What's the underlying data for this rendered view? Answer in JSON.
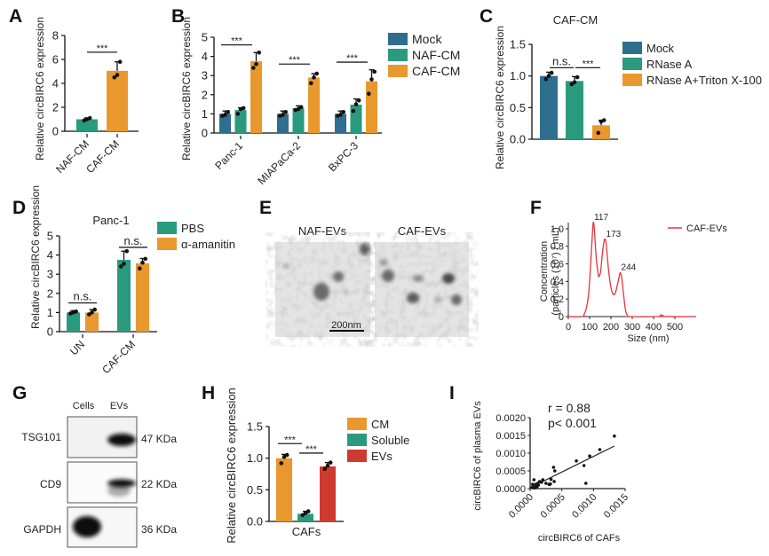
{
  "figure": {
    "panel_labels": [
      "A",
      "B",
      "C",
      "D",
      "E",
      "F",
      "G",
      "H",
      "I"
    ]
  },
  "colors": {
    "mock": "#2e6e8e",
    "teal": "#2a9a7e",
    "orange": "#e9982e",
    "red": "#cf3a2f",
    "line_red": "#e8323c"
  },
  "chart_data": [
    {
      "panel": "A",
      "type": "bar",
      "title": "",
      "ylabel": "Relative circBIRC6 expression",
      "xlabel": "",
      "ylim": [
        0,
        8
      ],
      "yticks": [
        0,
        2,
        4,
        6,
        8
      ],
      "categories": [
        "NAF-CM",
        "CAF-CM"
      ],
      "values": [
        1.0,
        5.05
      ],
      "errors": [
        0.12,
        0.75
      ],
      "points": [
        [
          0.9,
          1.0,
          1.1
        ],
        [
          4.5,
          4.7,
          5.8
        ]
      ],
      "bar_colors": [
        "teal",
        "orange"
      ],
      "significance": [
        {
          "from": 0,
          "to": 1,
          "label": "***",
          "y": 6.6
        }
      ]
    },
    {
      "panel": "B",
      "type": "bar",
      "ylabel": "Relative circBIRC6 expression",
      "ylim": [
        0,
        5
      ],
      "yticks": [
        0,
        1,
        2,
        3,
        4,
        5
      ],
      "categories": [
        "Panc-1",
        "MIAPaCa-2",
        "BxPC-3"
      ],
      "series": [
        {
          "name": "Mock",
          "color": "mock",
          "values": [
            1.0,
            1.0,
            1.0
          ],
          "errors": [
            0.15,
            0.15,
            0.15
          ],
          "points": [
            [
              0.9,
              0.95,
              1.1
            ],
            [
              0.9,
              0.95,
              1.1
            ],
            [
              0.9,
              0.95,
              1.1
            ]
          ]
        },
        {
          "name": "NAF-CM",
          "color": "teal",
          "values": [
            1.2,
            1.3,
            1.48
          ],
          "errors": [
            0.12,
            0.12,
            0.3
          ],
          "points": [
            [
              1.0,
              1.25,
              1.3
            ],
            [
              1.2,
              1.25,
              1.35
            ],
            [
              1.15,
              1.5,
              1.7
            ]
          ]
        },
        {
          "name": "CAF-CM",
          "color": "orange",
          "values": [
            3.75,
            2.9,
            2.7
          ],
          "errors": [
            0.45,
            0.2,
            0.6
          ],
          "points": [
            [
              3.4,
              3.6,
              4.2
            ],
            [
              2.6,
              2.9,
              3.1
            ],
            [
              2.05,
              2.8,
              3.2
            ]
          ]
        }
      ],
      "significance": [
        {
          "category": 0,
          "label": "***",
          "y": 4.6
        },
        {
          "category": 1,
          "label": "***",
          "y": 3.6
        },
        {
          "category": 2,
          "label": "***",
          "y": 3.7
        }
      ],
      "legend": [
        "Mock",
        "NAF-CM",
        "CAF-CM"
      ]
    },
    {
      "panel": "C",
      "type": "bar",
      "title": "CAF-CM",
      "ylabel": "Relative circBIRC6 expression",
      "ylim": [
        0,
        1.5
      ],
      "yticks": [
        "0.0",
        "0.5",
        "1.0",
        "1.5"
      ],
      "categories": [
        "Mock",
        "RNase A",
        "RNase A+Triton X-100"
      ],
      "values": [
        1.0,
        0.92,
        0.22
      ],
      "errors": [
        0.06,
        0.07,
        0.08
      ],
      "points": [
        [
          0.95,
          1.0,
          1.05
        ],
        [
          0.87,
          0.9,
          0.98
        ],
        [
          0.1,
          0.28,
          0.3
        ]
      ],
      "bar_colors": [
        "mock",
        "teal",
        "orange"
      ],
      "significance": [
        {
          "from": 0,
          "to": 1,
          "label": "n.s.",
          "y": 1.13
        },
        {
          "from": 1,
          "to": 2,
          "label": "***",
          "y": 1.13
        }
      ],
      "legend": [
        "Mock",
        "RNase A",
        "RNase A+Triton X-100"
      ]
    },
    {
      "panel": "D",
      "type": "bar",
      "title": "Panc-1",
      "ylabel": "Relative circBIRC6 expression",
      "ylim": [
        0,
        5
      ],
      "yticks": [
        0,
        1,
        2,
        3,
        4,
        5
      ],
      "categories": [
        "UN",
        "CAF-CM"
      ],
      "series": [
        {
          "name": "PBS",
          "color": "teal",
          "values": [
            1.0,
            3.75
          ],
          "errors": [
            0.1,
            0.45
          ],
          "points": [
            [
              0.95,
              1.0,
              1.05
            ],
            [
              3.4,
              3.55,
              4.2
            ]
          ]
        },
        {
          "name": "α-amanitin",
          "color": "orange",
          "values": [
            1.0,
            3.57
          ],
          "errors": [
            0.15,
            0.25
          ],
          "points": [
            [
              0.9,
              1.0,
              1.15
            ],
            [
              3.3,
              3.6,
              3.8
            ]
          ]
        }
      ],
      "significance": [
        {
          "category": 0,
          "label": "n.s.",
          "y": 1.5
        },
        {
          "category": 1,
          "label": "n.s.",
          "y": 4.4
        }
      ],
      "legend": [
        "PBS",
        "α-amanitin"
      ]
    },
    {
      "panel": "F",
      "type": "line",
      "xlabel": "Size (nm)",
      "ylabel": "Concentration (particles (10⁷) / mL)",
      "ylabel_line1": "Concentration",
      "ylabel_line2": "(particles (10⁷) / mL)",
      "xlim": [
        0,
        600
      ],
      "ylim": [
        0,
        1.07
      ],
      "xticks": [
        0,
        100,
        200,
        300,
        400,
        500
      ],
      "yticks": [
        "0",
        "0.2",
        "0.4",
        "0.6",
        "0.8",
        "1.0"
      ],
      "series": [
        {
          "name": "CAF-EVs",
          "color": "line_red",
          "x": [
            0,
            65,
            75,
            85,
            95,
            105,
            112,
            117,
            122,
            130,
            140,
            145,
            152,
            160,
            168,
            173,
            178,
            188,
            200,
            212,
            222,
            232,
            240,
            244,
            250,
            258,
            268,
            278,
            290,
            420,
            430,
            437,
            445,
            455,
            600
          ],
          "y": [
            0,
            0,
            0.03,
            0.1,
            0.25,
            0.6,
            0.9,
            1.07,
            1.0,
            0.7,
            0.48,
            0.46,
            0.52,
            0.72,
            0.86,
            0.88,
            0.82,
            0.55,
            0.33,
            0.25,
            0.28,
            0.38,
            0.47,
            0.5,
            0.45,
            0.28,
            0.08,
            0.01,
            0,
            0,
            0.01,
            0.02,
            0.01,
            0,
            0
          ]
        }
      ],
      "annotations": [
        {
          "x": 117,
          "y": 1.07,
          "label": "117"
        },
        {
          "x": 173,
          "y": 0.88,
          "label": "173"
        },
        {
          "x": 244,
          "y": 0.5,
          "label": "244"
        }
      ],
      "legend": [
        "CAF-EVs"
      ],
      "legend_position": "top-right"
    },
    {
      "panel": "H",
      "type": "bar",
      "ylabel": "Relative circBIRC6 expression",
      "ylim": [
        0,
        1.5
      ],
      "yticks": [
        "0.0",
        "0.5",
        "1.0",
        "1.5"
      ],
      "categories": [
        "CAFs"
      ],
      "series": [
        {
          "name": "CM",
          "color": "orange",
          "values": [
            1.0
          ],
          "errors": [
            0.06
          ],
          "points": [
            [
              0.92,
              1.02,
              1.05
            ]
          ]
        },
        {
          "name": "Soluble",
          "color": "teal",
          "values": [
            0.12
          ],
          "errors": [
            0.04
          ],
          "points": [
            [
              0.1,
              0.13,
              0.16
            ]
          ]
        },
        {
          "name": "EVs",
          "color": "red",
          "values": [
            0.87
          ],
          "errors": [
            0.06
          ],
          "points": [
            [
              0.83,
              0.88,
              0.93
            ]
          ]
        }
      ],
      "significance": [
        {
          "from": 0,
          "to": 1,
          "label": "***",
          "y": 1.23
        },
        {
          "from": 1,
          "to": 2,
          "label": "***",
          "y": 1.08
        }
      ],
      "legend": [
        "CM",
        "Soluble",
        "EVs"
      ]
    },
    {
      "panel": "I",
      "type": "scatter",
      "xlabel": "circBIRC6 of CAFs",
      "ylabel": "circBIRC6 of plasma EVs",
      "xlim": [
        0,
        0.0015
      ],
      "ylim": [
        0,
        0.002
      ],
      "xticks": [
        "0.0000",
        "0.0005",
        "0.0010",
        "0.0015"
      ],
      "yticks": [
        "0.0000",
        "0.0005",
        "0.0010",
        "0.0015",
        "0.0020"
      ],
      "annotation_r": "r = 0.88",
      "annotation_p": "p< 0.001",
      "points": [
        [
          3e-05,
          3e-05
        ],
        [
          5e-05,
          5e-05
        ],
        [
          7e-05,
          2e-05
        ],
        [
          8e-05,
          8e-05
        ],
        [
          0.0001,
          4e-05
        ],
        [
          9e-05,
          0.00012
        ],
        [
          0.00011,
          6e-05
        ],
        [
          0.00012,
          0.00015
        ],
        [
          0.00013,
          0.0001
        ],
        [
          6e-05,
          0.00025
        ],
        [
          0.00015,
          0.0002
        ],
        [
          0.0002,
          0.00025
        ],
        [
          0.00025,
          0.00015
        ],
        [
          0.0003,
          0.00012
        ],
        [
          0.00032,
          0.00013
        ],
        [
          0.00038,
          0.0002
        ],
        [
          0.00037,
          0.0006
        ],
        [
          0.00039,
          0.0005
        ],
        [
          0.00033,
          0.00026
        ],
        [
          0.00073,
          0.00078
        ],
        [
          0.00085,
          0.00065
        ],
        [
          0.00094,
          0.00092
        ],
        [
          0.00088,
          0.00015
        ],
        [
          0.0011,
          0.0011
        ],
        [
          0.00133,
          0.00148
        ],
        [
          0.00018,
          0.00018
        ],
        [
          4e-05,
          0.00012
        ]
      ],
      "fit_line": {
        "x": [
          3e-05,
          0.00133
        ],
        "y": [
          5e-05,
          0.0012
        ]
      }
    }
  ],
  "panel_E": {
    "images": [
      {
        "title": "NAF-EVs",
        "scale_bar": "200nm"
      },
      {
        "title": "CAF-EVs"
      }
    ]
  },
  "panel_G": {
    "lanes": [
      "Cells",
      "EVs"
    ],
    "proteins": [
      {
        "name": "TSG101",
        "size": "47 KDa"
      },
      {
        "name": "CD9",
        "size": "22 KDa"
      },
      {
        "name": "GAPDH",
        "size": "36 KDa"
      }
    ]
  }
}
